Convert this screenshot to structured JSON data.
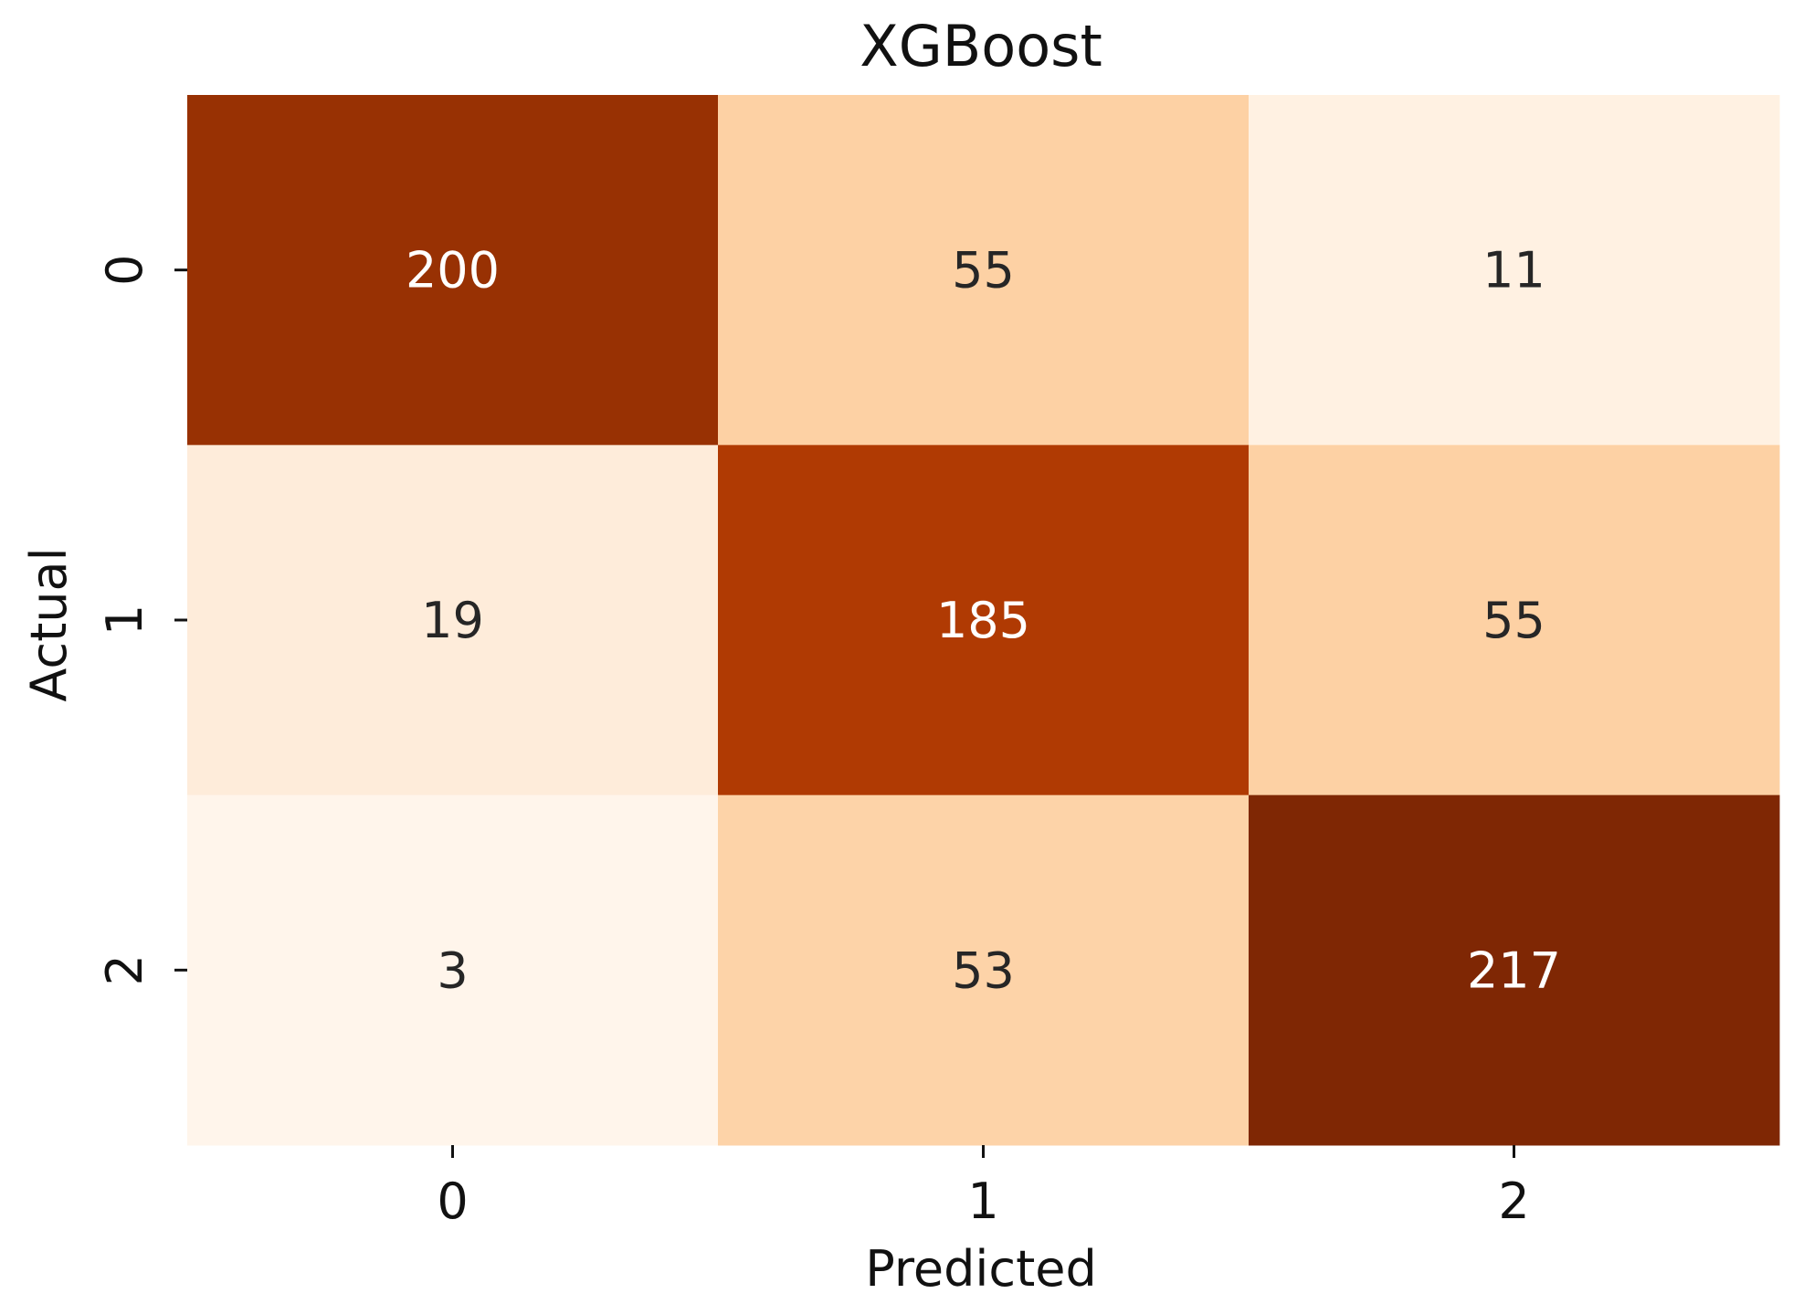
{
  "chart_data": {
    "type": "heatmap",
    "title": "XGBoost",
    "xlabel": "Predicted",
    "ylabel": "Actual",
    "x_categories": [
      "0",
      "1",
      "2"
    ],
    "y_categories": [
      "0",
      "1",
      "2"
    ],
    "values": [
      [
        200,
        55,
        11
      ],
      [
        19,
        185,
        55
      ],
      [
        3,
        53,
        217
      ]
    ],
    "colormap": "Oranges",
    "value_range": [
      3,
      217
    ],
    "colorbar": false,
    "grid": false
  }
}
